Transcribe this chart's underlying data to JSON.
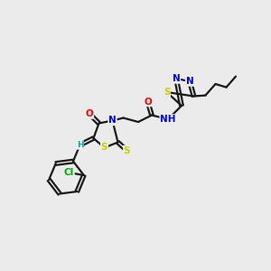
{
  "background_color": "#ebebeb",
  "bond_color": "#1a1a1a",
  "atom_colors": {
    "S": "#cccc00",
    "N": "#0000ff",
    "O": "#ff0000",
    "C": "#1a1a1a",
    "H": "#00aaaa",
    "Cl": "#00aa00"
  },
  "lw": 1.6,
  "sep": 0.006,
  "fs": 7.5
}
